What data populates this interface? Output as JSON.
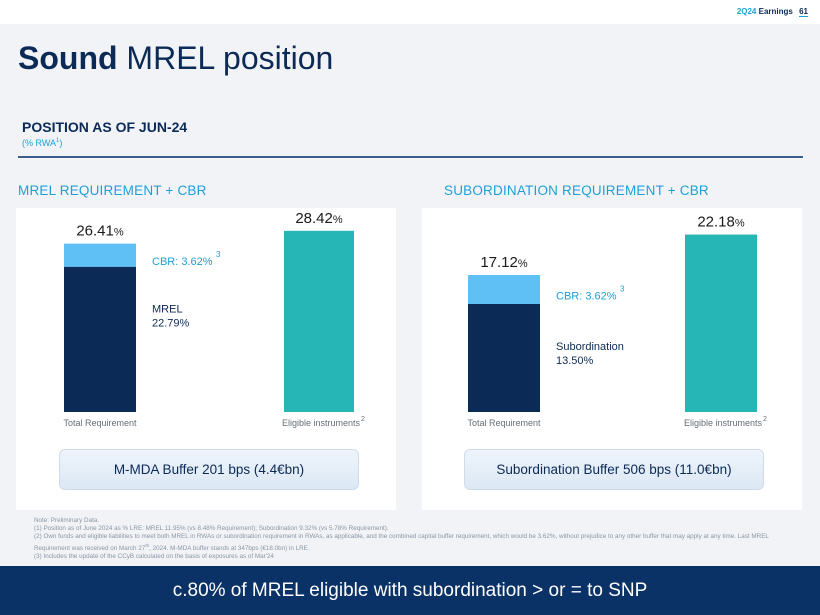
{
  "header": {
    "period": "2Q24",
    "label": "Earnings",
    "page_number": "61"
  },
  "title": {
    "bold": "Sound",
    "rest": "MREL position"
  },
  "section": {
    "heading": "POSITION AS OF JUN-24",
    "sub_prefix": "(% RWA",
    "sub_sup": "1",
    "sub_suffix": ")"
  },
  "chart_data": [
    {
      "type": "bar",
      "title": "MREL REQUIREMENT + CBR",
      "categories": [
        "Total Requirement",
        "Eligible instruments"
      ],
      "category_notes": [
        "",
        "2"
      ],
      "series": [
        {
          "name": "MREL",
          "values": [
            22.79,
            0
          ],
          "color": "#0b2a55"
        },
        {
          "name": "CBR",
          "values": [
            3.62,
            0
          ],
          "color": "#5fc0f5"
        },
        {
          "name": "Eligible instruments",
          "values": [
            0,
            28.42
          ],
          "color": "#27b6b6"
        }
      ],
      "totals": [
        "26.41%",
        "28.42%"
      ],
      "segment_labels": {
        "cbr": "CBR: 3.62%",
        "cbr_note": "3",
        "base_name": "MREL",
        "base_value": "22.79%"
      },
      "ylim": [
        0,
        32
      ],
      "grid": false,
      "buffer": "M-MDA Buffer 201 bps (4.4€bn)"
    },
    {
      "type": "bar",
      "title": "SUBORDINATION REQUIREMENT + CBR",
      "categories": [
        "Total Requirement",
        "Eligible instruments"
      ],
      "category_notes": [
        "",
        "2"
      ],
      "series": [
        {
          "name": "Subordination",
          "values": [
            13.5,
            0
          ],
          "color": "#0b2a55"
        },
        {
          "name": "CBR",
          "values": [
            3.62,
            0
          ],
          "color": "#5fc0f5"
        },
        {
          "name": "Eligible instruments",
          "values": [
            0,
            22.18
          ],
          "color": "#27b6b6"
        }
      ],
      "totals": [
        "17.12%",
        "22.18%"
      ],
      "segment_labels": {
        "cbr": "CBR: 3.62%",
        "cbr_note": "3",
        "base_name": "Subordination",
        "base_value": "13.50%"
      },
      "ylim": [
        0,
        25.5
      ],
      "grid": false,
      "buffer": "Subordination Buffer 506 bps (11.0€bn)"
    }
  ],
  "notes": {
    "line0": "Note: Preliminary Data.",
    "line1": "(1) Position as of June 2024 as % LRE: MREL 11.95% (vs 8.48% Requirement); Subordination 9.32% (vs 5.78% Requirement).",
    "line2a": "(2) Own funds and eligible liabilities to meet both MREL in RWAs or subordination requirement in RWAs, as applicable, and the combined capital buffer requirement, which would be 3.62%, without prejudice to any other buffer that may apply at any time. Last MREL Requirement was received on March 27",
    "line2sup": "th",
    "line2b": ", 2024. M-MDA buffer stands at 347bps (€18.0bn) in LRE.",
    "line3": "(3) Includes the update of the CCyB calculated on the basis of exposures as of Mar'24"
  },
  "footer": {
    "text": "c.80% of MREL eligible with subordination > or = to SNP"
  }
}
